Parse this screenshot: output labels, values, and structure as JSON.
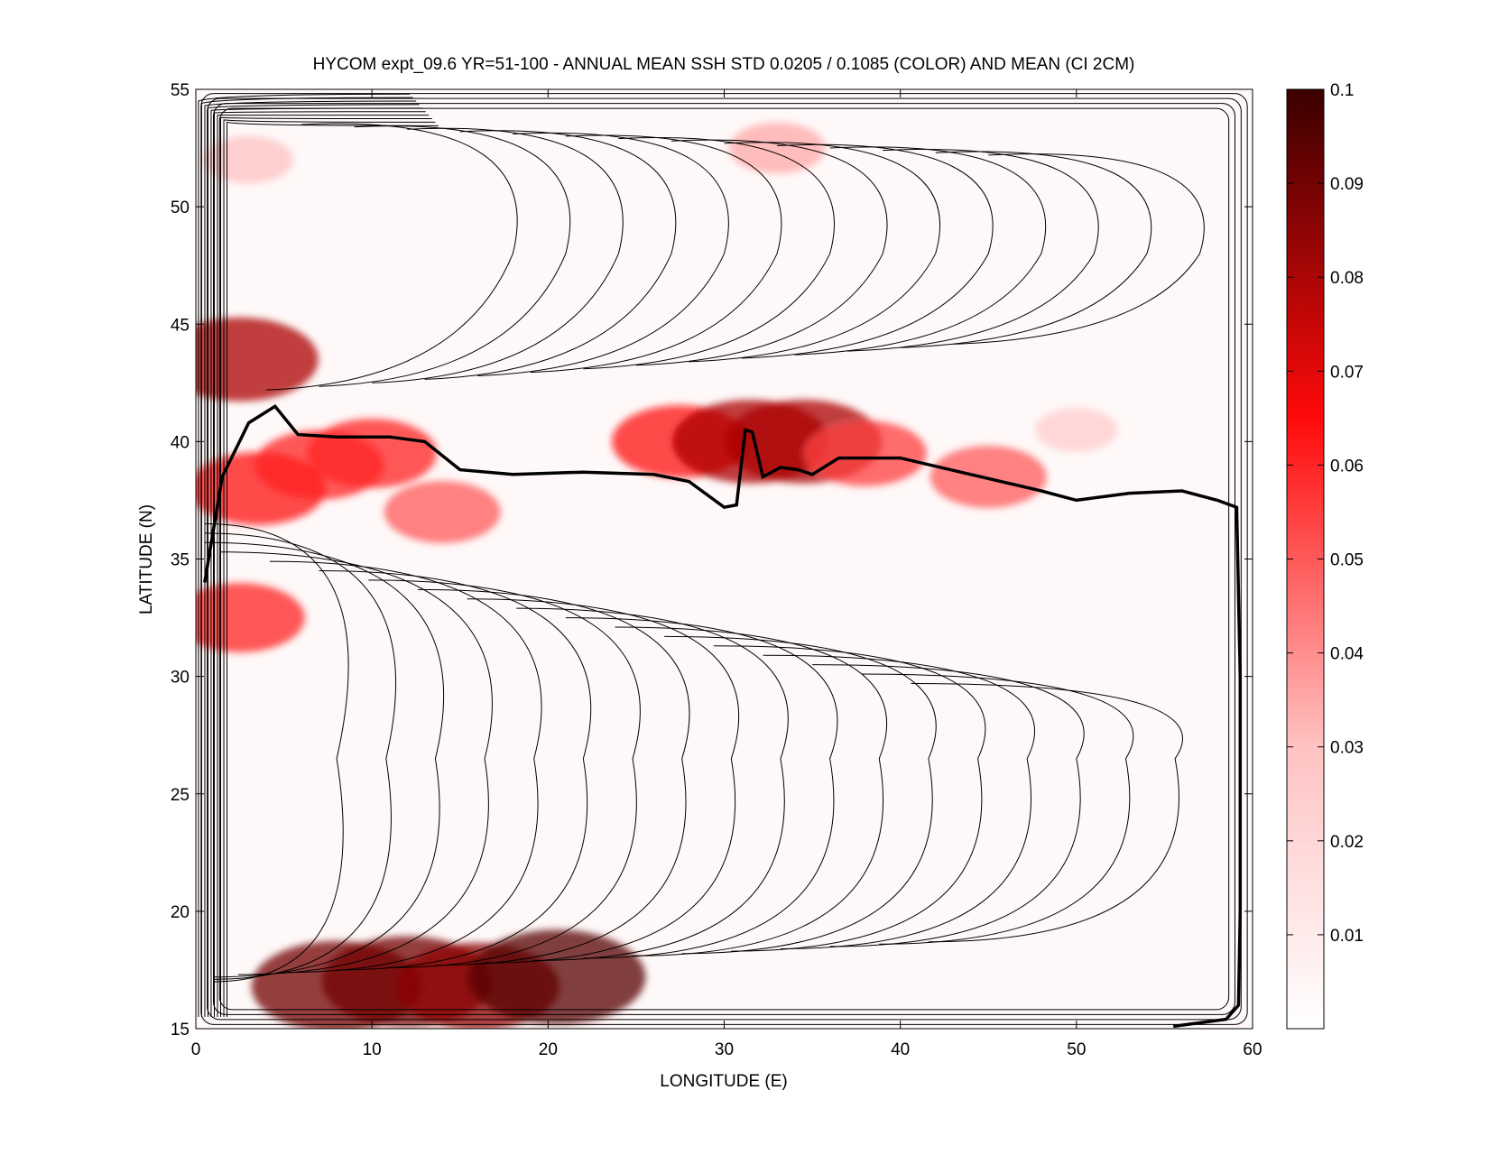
{
  "chart_data": {
    "type": "heatmap",
    "title": "HYCOM expt_09.6 YR=51-100 - ANNUAL MEAN SSH STD 0.0205 / 0.1085 (COLOR) AND MEAN (CI 2CM)",
    "xlabel": "LONGITUDE (E)",
    "ylabel": "LATITUDE (N)",
    "xlim": [
      0,
      60
    ],
    "ylim": [
      15,
      55
    ],
    "x_ticks": [
      "0",
      "10",
      "20",
      "30",
      "40",
      "50",
      "60"
    ],
    "y_ticks": [
      "15",
      "20",
      "25",
      "30",
      "35",
      "40",
      "45",
      "50",
      "55"
    ],
    "colorbar": {
      "range": [
        0,
        0.1
      ],
      "ticks": [
        "0.01",
        "0.02",
        "0.03",
        "0.04",
        "0.05",
        "0.06",
        "0.07",
        "0.08",
        "0.09",
        "0.1"
      ],
      "colors": [
        "#ffffff",
        "#ff9999",
        "#ff0000",
        "#3a0000"
      ]
    },
    "contour_interval_cm": 2,
    "hotspots": [
      {
        "lon": 2.5,
        "lat": 43.5,
        "std": 0.08
      },
      {
        "lon": 2.5,
        "lat": 32.5,
        "std": 0.06
      },
      {
        "lon": 3.5,
        "lat": 38.0,
        "std": 0.065
      },
      {
        "lon": 7.0,
        "lat": 39.0,
        "std": 0.06
      },
      {
        "lon": 10.0,
        "lat": 39.5,
        "std": 0.06
      },
      {
        "lon": 14.0,
        "lat": 37.0,
        "std": 0.05
      },
      {
        "lon": 27.5,
        "lat": 40.0,
        "std": 0.065
      },
      {
        "lon": 31.5,
        "lat": 40.0,
        "std": 0.08
      },
      {
        "lon": 34.5,
        "lat": 40.0,
        "std": 0.08
      },
      {
        "lon": 38.0,
        "lat": 39.5,
        "std": 0.055
      },
      {
        "lon": 45.0,
        "lat": 38.5,
        "std": 0.05
      },
      {
        "lon": 8.0,
        "lat": 16.8,
        "std": 0.09
      },
      {
        "lon": 12.0,
        "lat": 17.0,
        "std": 0.09
      },
      {
        "lon": 16.0,
        "lat": 16.8,
        "std": 0.085
      },
      {
        "lon": 20.5,
        "lat": 17.2,
        "std": 0.095
      },
      {
        "lon": 3.0,
        "lat": 52.0,
        "std": 0.03
      },
      {
        "lon": 33.0,
        "lat": 52.5,
        "std": 0.035
      },
      {
        "lon": 50.0,
        "lat": 40.5,
        "std": 0.025
      }
    ],
    "zero_contour_path": [
      [
        0.5,
        34
      ],
      [
        1.5,
        38.5
      ],
      [
        3,
        40.8
      ],
      [
        4.5,
        41.5
      ],
      [
        5.8,
        40.3
      ],
      [
        8,
        40.2
      ],
      [
        11,
        40.2
      ],
      [
        13,
        40
      ],
      [
        15,
        38.8
      ],
      [
        18,
        38.6
      ],
      [
        22,
        38.7
      ],
      [
        26,
        38.6
      ],
      [
        28,
        38.3
      ],
      [
        30,
        37.2
      ],
      [
        30.7,
        37.3
      ],
      [
        31.2,
        40.5
      ],
      [
        31.6,
        40.4
      ],
      [
        32.2,
        38.5
      ],
      [
        33.2,
        38.9
      ],
      [
        34.2,
        38.8
      ],
      [
        35,
        38.6
      ],
      [
        36.5,
        39.3
      ],
      [
        40,
        39.3
      ],
      [
        44,
        38.6
      ],
      [
        48,
        37.9
      ],
      [
        50,
        37.5
      ],
      [
        53,
        37.8
      ],
      [
        56,
        37.9
      ],
      [
        58,
        37.5
      ],
      [
        59.1,
        37.2
      ],
      [
        59.3,
        30
      ],
      [
        59.3,
        20
      ],
      [
        59.2,
        16
      ],
      [
        58.5,
        15.4
      ],
      [
        55.5,
        15.1
      ]
    ]
  }
}
